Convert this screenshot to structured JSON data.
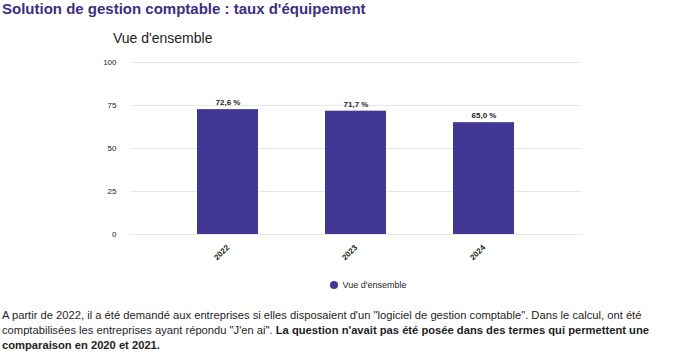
{
  "chart_data": {
    "type": "bar",
    "title": "Solution de gestion comptable : taux d'équipement",
    "subtitle": "Vue d'ensemble",
    "categories": [
      "2022",
      "2023",
      "2024"
    ],
    "series": [
      {
        "name": "Vue d'ensemble",
        "color": "#433795",
        "values": [
          72.6,
          71.7,
          65.0
        ],
        "value_labels": [
          "72,6 %",
          "71,7 %",
          "65,0 %"
        ]
      }
    ],
    "ylim": [
      0,
      100
    ],
    "yticks": [
      0,
      25,
      50,
      75,
      100
    ],
    "grid": true,
    "data_labels": true,
    "legend": "bottom",
    "annotations": [
      "A partir de 2022, il a été demandé aux entreprises si elles disposaient d'un \"logiciel de gestion comptable\". Dans le calcul, ont été comptabilisées les entreprises ayant répondu \"J'en ai\".",
      "La question n'avait pas été posée dans des termes qui permettent une comparaison en 2020 et 2021."
    ]
  }
}
